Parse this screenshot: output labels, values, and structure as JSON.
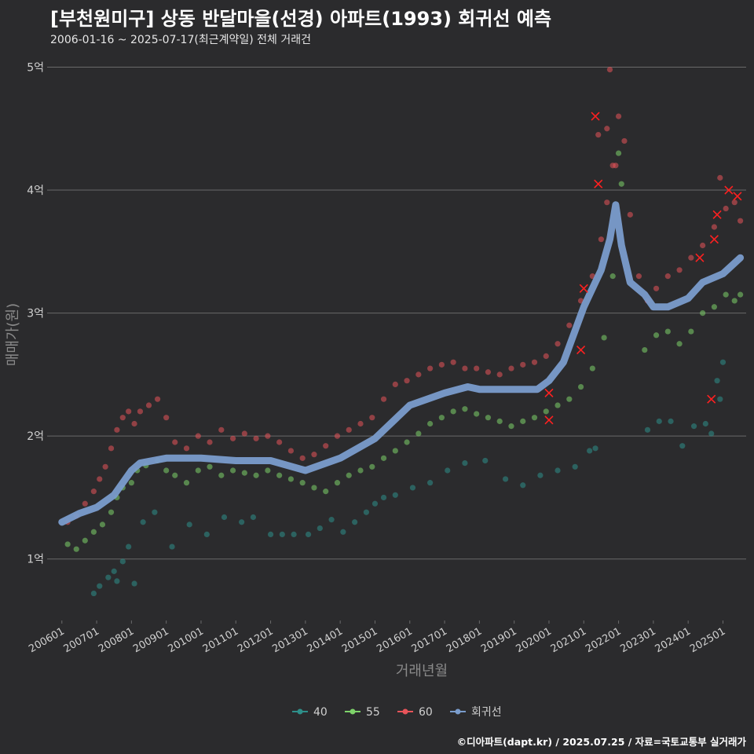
{
  "header": {
    "title": "[부천원미구] 상동 반달마을(선경) 아파트(1993) 회귀선 예측",
    "subtitle": "2006-01-16 ~ 2025-07-17(최근계약일) 전체 거래건"
  },
  "caption": "©디아파트(dapt.kr) / 2025.07.25 / 자료=국토교통부 실거래가",
  "colors": {
    "background": "#2b2b2d",
    "grid": "#6a6a6a",
    "series_40": "#2e8f8a",
    "series_55": "#7ed36a",
    "series_60": "#e8545a",
    "regression": "#7a9ccc",
    "cancelled_marker": "#ff2020"
  },
  "chart_data": {
    "type": "scatter",
    "title": "[부천원미구] 상동 반달마을(선경) 아파트(1993) 회귀선 예측",
    "xlabel": "거래년월",
    "ylabel": "매매가(원)",
    "x_range": [
      "2005-09",
      "2025-09"
    ],
    "y_range": [
      0.5,
      5.15
    ],
    "y_unit": "억",
    "yticks": [
      {
        "value": 1,
        "label": "1억"
      },
      {
        "value": 2,
        "label": "2억"
      },
      {
        "value": 3,
        "label": "3억"
      },
      {
        "value": 4,
        "label": "4억"
      },
      {
        "value": 5,
        "label": "5억"
      }
    ],
    "xticks": [
      {
        "value": "2006-01",
        "label": "200601"
      },
      {
        "value": "2007-01",
        "label": "200701"
      },
      {
        "value": "2008-01",
        "label": "200801"
      },
      {
        "value": "2009-01",
        "label": "200901"
      },
      {
        "value": "2010-01",
        "label": "201001"
      },
      {
        "value": "2011-01",
        "label": "201101"
      },
      {
        "value": "2012-01",
        "label": "201201"
      },
      {
        "value": "2013-01",
        "label": "201301"
      },
      {
        "value": "2014-01",
        "label": "201401"
      },
      {
        "value": "2015-01",
        "label": "201501"
      },
      {
        "value": "2016-01",
        "label": "201601"
      },
      {
        "value": "2017-01",
        "label": "201701"
      },
      {
        "value": "2018-01",
        "label": "201801"
      },
      {
        "value": "2019-01",
        "label": "201901"
      },
      {
        "value": "2020-01",
        "label": "202001"
      },
      {
        "value": "2021-01",
        "label": "202101"
      },
      {
        "value": "2022-01",
        "label": "202201"
      },
      {
        "value": "2023-01",
        "label": "202301"
      },
      {
        "value": "2024-01",
        "label": "202401"
      },
      {
        "value": "2025-01",
        "label": "202501"
      }
    ],
    "grid": true,
    "legend_position": "bottom",
    "legend": [
      {
        "name": "40",
        "color": "#2e8f8a"
      },
      {
        "name": "55",
        "color": "#7ed36a"
      },
      {
        "name": "60",
        "color": "#e8545a"
      },
      {
        "name": "회귀선",
        "color": "#7a9ccc"
      }
    ],
    "series": [
      {
        "name": "40",
        "type": "scatter",
        "points": [
          [
            "2006-12",
            0.72
          ],
          [
            "2007-02",
            0.78
          ],
          [
            "2007-05",
            0.85
          ],
          [
            "2007-07",
            0.9
          ],
          [
            "2007-08",
            0.82
          ],
          [
            "2007-10",
            0.98
          ],
          [
            "2007-12",
            1.1
          ],
          [
            "2008-02",
            0.8
          ],
          [
            "2008-05",
            1.3
          ],
          [
            "2008-09",
            1.38
          ],
          [
            "2009-03",
            1.1
          ],
          [
            "2009-09",
            1.28
          ],
          [
            "2010-03",
            1.2
          ],
          [
            "2010-09",
            1.34
          ],
          [
            "2011-03",
            1.3
          ],
          [
            "2011-07",
            1.34
          ],
          [
            "2012-01",
            1.2
          ],
          [
            "2012-05",
            1.2
          ],
          [
            "2012-09",
            1.2
          ],
          [
            "2013-02",
            1.2
          ],
          [
            "2013-06",
            1.25
          ],
          [
            "2013-10",
            1.32
          ],
          [
            "2014-02",
            1.22
          ],
          [
            "2014-06",
            1.3
          ],
          [
            "2014-10",
            1.38
          ],
          [
            "2015-01",
            1.45
          ],
          [
            "2015-04",
            1.5
          ],
          [
            "2015-08",
            1.52
          ],
          [
            "2016-02",
            1.58
          ],
          [
            "2016-08",
            1.62
          ],
          [
            "2017-02",
            1.72
          ],
          [
            "2017-08",
            1.78
          ],
          [
            "2018-03",
            1.8
          ],
          [
            "2018-10",
            1.65
          ],
          [
            "2019-04",
            1.6
          ],
          [
            "2019-10",
            1.68
          ],
          [
            "2020-04",
            1.72
          ],
          [
            "2020-10",
            1.75
          ],
          [
            "2021-03",
            1.88
          ],
          [
            "2021-05",
            1.9
          ],
          [
            "2022-11",
            2.05
          ],
          [
            "2023-03",
            2.12
          ],
          [
            "2023-07",
            2.12
          ],
          [
            "2023-11",
            1.92
          ],
          [
            "2024-03",
            2.08
          ],
          [
            "2024-07",
            2.1
          ],
          [
            "2024-09",
            2.02
          ],
          [
            "2024-11",
            2.45
          ],
          [
            "2025-01",
            2.6
          ],
          [
            "2024-12",
            2.3
          ]
        ]
      },
      {
        "name": "55",
        "type": "scatter",
        "points": [
          [
            "2006-03",
            1.12
          ],
          [
            "2006-06",
            1.08
          ],
          [
            "2006-09",
            1.15
          ],
          [
            "2006-12",
            1.22
          ],
          [
            "2007-03",
            1.28
          ],
          [
            "2007-06",
            1.38
          ],
          [
            "2007-08",
            1.5
          ],
          [
            "2007-10",
            1.58
          ],
          [
            "2008-01",
            1.62
          ],
          [
            "2008-03",
            1.72
          ],
          [
            "2008-06",
            1.76
          ],
          [
            "2008-10",
            1.8
          ],
          [
            "2009-01",
            1.72
          ],
          [
            "2009-04",
            1.68
          ],
          [
            "2009-08",
            1.62
          ],
          [
            "2009-12",
            1.72
          ],
          [
            "2010-04",
            1.75
          ],
          [
            "2010-08",
            1.68
          ],
          [
            "2010-12",
            1.72
          ],
          [
            "2011-04",
            1.7
          ],
          [
            "2011-08",
            1.68
          ],
          [
            "2011-12",
            1.72
          ],
          [
            "2012-04",
            1.68
          ],
          [
            "2012-08",
            1.65
          ],
          [
            "2012-12",
            1.62
          ],
          [
            "2013-04",
            1.58
          ],
          [
            "2013-08",
            1.55
          ],
          [
            "2013-12",
            1.62
          ],
          [
            "2014-04",
            1.68
          ],
          [
            "2014-08",
            1.72
          ],
          [
            "2014-12",
            1.75
          ],
          [
            "2015-04",
            1.82
          ],
          [
            "2015-08",
            1.88
          ],
          [
            "2015-12",
            1.95
          ],
          [
            "2016-04",
            2.02
          ],
          [
            "2016-08",
            2.1
          ],
          [
            "2016-12",
            2.15
          ],
          [
            "2017-04",
            2.2
          ],
          [
            "2017-08",
            2.22
          ],
          [
            "2017-12",
            2.18
          ],
          [
            "2018-04",
            2.15
          ],
          [
            "2018-08",
            2.12
          ],
          [
            "2018-12",
            2.08
          ],
          [
            "2019-04",
            2.12
          ],
          [
            "2019-08",
            2.15
          ],
          [
            "2019-12",
            2.2
          ],
          [
            "2020-04",
            2.25
          ],
          [
            "2020-08",
            2.3
          ],
          [
            "2020-12",
            2.4
          ],
          [
            "2021-04",
            2.55
          ],
          [
            "2021-08",
            2.8
          ],
          [
            "2021-11",
            3.3
          ],
          [
            "2022-01",
            4.3
          ],
          [
            "2022-02",
            4.05
          ],
          [
            "2022-10",
            2.7
          ],
          [
            "2023-02",
            2.82
          ],
          [
            "2023-06",
            2.85
          ],
          [
            "2023-10",
            2.75
          ],
          [
            "2024-02",
            2.85
          ],
          [
            "2024-06",
            3.0
          ],
          [
            "2024-10",
            3.05
          ],
          [
            "2025-02",
            3.15
          ],
          [
            "2025-05",
            3.1
          ],
          [
            "2025-07",
            3.15
          ]
        ]
      },
      {
        "name": "60",
        "type": "scatter",
        "points": [
          [
            "2006-03",
            1.3
          ],
          [
            "2006-06",
            1.35
          ],
          [
            "2006-09",
            1.45
          ],
          [
            "2006-12",
            1.55
          ],
          [
            "2007-02",
            1.65
          ],
          [
            "2007-04",
            1.75
          ],
          [
            "2007-06",
            1.9
          ],
          [
            "2007-08",
            2.05
          ],
          [
            "2007-10",
            2.15
          ],
          [
            "2007-12",
            2.2
          ],
          [
            "2008-02",
            2.1
          ],
          [
            "2008-04",
            2.2
          ],
          [
            "2008-07",
            2.25
          ],
          [
            "2008-10",
            2.3
          ],
          [
            "2009-01",
            2.15
          ],
          [
            "2009-04",
            1.95
          ],
          [
            "2009-08",
            1.9
          ],
          [
            "2009-12",
            2.0
          ],
          [
            "2010-04",
            1.95
          ],
          [
            "2010-08",
            2.05
          ],
          [
            "2010-12",
            1.98
          ],
          [
            "2011-04",
            2.02
          ],
          [
            "2011-08",
            1.98
          ],
          [
            "2011-12",
            2.0
          ],
          [
            "2012-04",
            1.95
          ],
          [
            "2012-08",
            1.88
          ],
          [
            "2012-12",
            1.82
          ],
          [
            "2013-04",
            1.85
          ],
          [
            "2013-08",
            1.92
          ],
          [
            "2013-12",
            2.0
          ],
          [
            "2014-04",
            2.05
          ],
          [
            "2014-08",
            2.1
          ],
          [
            "2014-12",
            2.15
          ],
          [
            "2015-04",
            2.3
          ],
          [
            "2015-08",
            2.42
          ],
          [
            "2015-12",
            2.45
          ],
          [
            "2016-04",
            2.5
          ],
          [
            "2016-08",
            2.55
          ],
          [
            "2016-12",
            2.58
          ],
          [
            "2017-04",
            2.6
          ],
          [
            "2017-08",
            2.55
          ],
          [
            "2017-12",
            2.55
          ],
          [
            "2018-04",
            2.52
          ],
          [
            "2018-08",
            2.5
          ],
          [
            "2018-12",
            2.55
          ],
          [
            "2019-04",
            2.58
          ],
          [
            "2019-08",
            2.6
          ],
          [
            "2019-12",
            2.65
          ],
          [
            "2020-04",
            2.75
          ],
          [
            "2020-08",
            2.9
          ],
          [
            "2020-12",
            3.1
          ],
          [
            "2021-04",
            3.3
          ],
          [
            "2021-07",
            3.6
          ],
          [
            "2021-09",
            3.9
          ],
          [
            "2021-11",
            4.2
          ],
          [
            "2022-01",
            4.6
          ],
          [
            "2022-03",
            4.4
          ],
          [
            "2022-05",
            3.8
          ],
          [
            "2022-08",
            3.3
          ],
          [
            "2022-11",
            3.1
          ],
          [
            "2023-02",
            3.2
          ],
          [
            "2023-06",
            3.3
          ],
          [
            "2023-10",
            3.35
          ],
          [
            "2024-02",
            3.45
          ],
          [
            "2024-06",
            3.55
          ],
          [
            "2024-10",
            3.7
          ],
          [
            "2025-02",
            3.85
          ],
          [
            "2025-05",
            3.9
          ],
          [
            "2025-07",
            3.75
          ],
          [
            "2021-06",
            4.45
          ],
          [
            "2021-10",
            4.98
          ],
          [
            "2021-09",
            4.5
          ],
          [
            "2021-12",
            4.2
          ],
          [
            "2024-12",
            4.1
          ]
        ]
      },
      {
        "name": "취소",
        "type": "marker",
        "points": [
          [
            "2020-01",
            2.35
          ],
          [
            "2020-01",
            2.13
          ],
          [
            "2020-12",
            2.7
          ],
          [
            "2021-01",
            3.2
          ],
          [
            "2021-05",
            4.6
          ],
          [
            "2021-06",
            4.05
          ],
          [
            "2024-05",
            3.45
          ],
          [
            "2024-09",
            2.3
          ],
          [
            "2024-10",
            3.6
          ],
          [
            "2024-11",
            3.8
          ],
          [
            "2025-03",
            4.0
          ],
          [
            "2025-06",
            3.95
          ]
        ]
      },
      {
        "name": "회귀선",
        "type": "line",
        "points": [
          [
            "2006-01",
            1.3
          ],
          [
            "2006-07",
            1.37
          ],
          [
            "2007-01",
            1.42
          ],
          [
            "2007-07",
            1.52
          ],
          [
            "2008-01",
            1.72
          ],
          [
            "2008-04",
            1.78
          ],
          [
            "2009-01",
            1.82
          ],
          [
            "2010-01",
            1.82
          ],
          [
            "2011-01",
            1.8
          ],
          [
            "2012-01",
            1.8
          ],
          [
            "2013-01",
            1.72
          ],
          [
            "2014-01",
            1.82
          ],
          [
            "2015-01",
            1.98
          ],
          [
            "2016-01",
            2.25
          ],
          [
            "2017-01",
            2.35
          ],
          [
            "2017-09",
            2.4
          ],
          [
            "2018-01",
            2.38
          ],
          [
            "2019-01",
            2.38
          ],
          [
            "2019-09",
            2.38
          ],
          [
            "2020-01",
            2.45
          ],
          [
            "2020-06",
            2.6
          ],
          [
            "2021-01",
            3.05
          ],
          [
            "2021-04",
            3.2
          ],
          [
            "2021-07",
            3.35
          ],
          [
            "2021-10",
            3.6
          ],
          [
            "2021-12",
            3.88
          ],
          [
            "2022-02",
            3.55
          ],
          [
            "2022-05",
            3.25
          ],
          [
            "2022-10",
            3.15
          ],
          [
            "2023-01",
            3.05
          ],
          [
            "2023-06",
            3.05
          ],
          [
            "2024-01",
            3.12
          ],
          [
            "2024-06",
            3.25
          ],
          [
            "2025-01",
            3.32
          ],
          [
            "2025-07",
            3.45
          ]
        ]
      }
    ]
  }
}
